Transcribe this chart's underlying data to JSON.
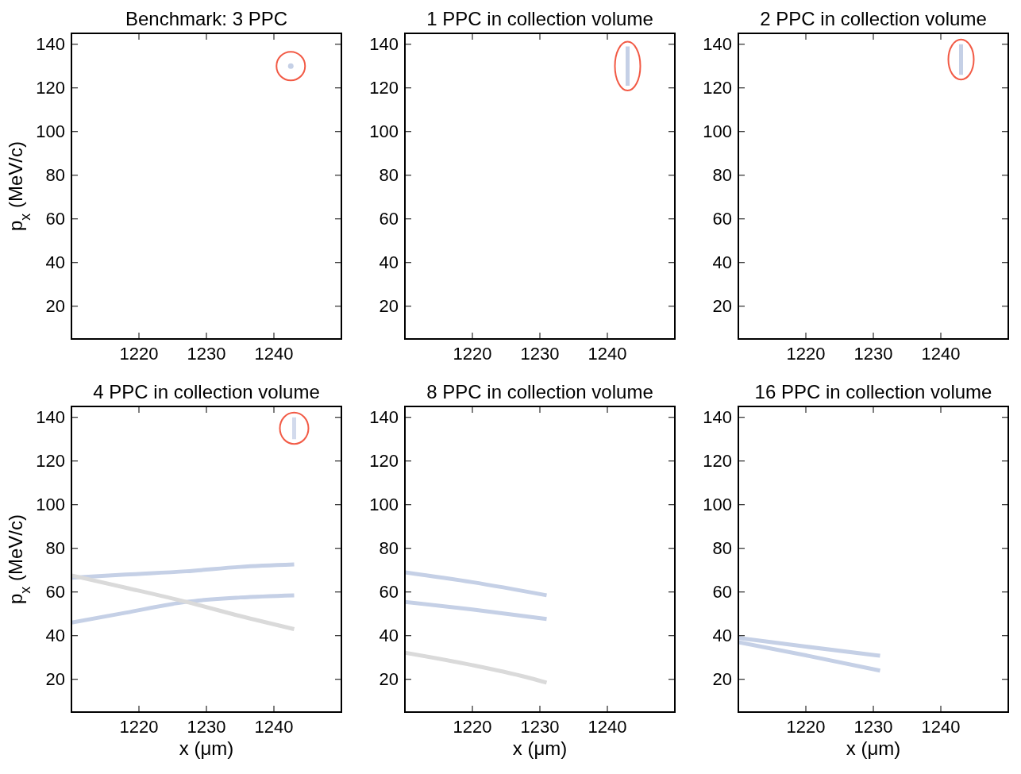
{
  "chart_data": [
    {
      "type": "line",
      "title": "Benchmark: 3 PPC",
      "ylabel": "p$_{x}$ (MeV/c)",
      "xlim": [
        1210,
        1250
      ],
      "ylim": [
        5,
        145
      ],
      "xticks": [
        1220,
        1230,
        1240
      ],
      "yticks": [
        20,
        40,
        60,
        80,
        100,
        120,
        140
      ],
      "series": [
        {
          "type": "scatter",
          "color": "#c5d0e6",
          "x": [
            1242.5
          ],
          "values": [
            130
          ]
        }
      ]
    },
    {
      "type": "line",
      "title": "1 PPC in collection volume",
      "xlim": [
        1210,
        1250
      ],
      "ylim": [
        5,
        145
      ],
      "xticks": [
        1220,
        1230,
        1240
      ],
      "yticks": [
        20,
        40,
        60,
        80,
        100,
        120,
        140
      ],
      "series": [
        {
          "color": "#c5d0e6",
          "x": [
            1243,
            1243
          ],
          "values": [
            121,
            139
          ]
        }
      ]
    },
    {
      "type": "line",
      "title": "2 PPC in collection volume",
      "xlim": [
        1210,
        1250
      ],
      "ylim": [
        5,
        145
      ],
      "xticks": [
        1220,
        1230,
        1240
      ],
      "yticks": [
        20,
        40,
        60,
        80,
        100,
        120,
        140
      ],
      "series": [
        {
          "color": "#c5d0e6",
          "x": [
            1243,
            1243
          ],
          "values": [
            126,
            140
          ]
        }
      ]
    },
    {
      "type": "line",
      "title": "4 PPC in collection volume",
      "ylabel": "p$_{x}$ (MeV/c)",
      "xlabel": "x (μm)",
      "xlim": [
        1210,
        1250
      ],
      "ylim": [
        5,
        145
      ],
      "xticks": [
        1220,
        1230,
        1240
      ],
      "yticks": [
        20,
        40,
        60,
        80,
        100,
        120,
        140
      ],
      "series": [
        {
          "color": "#d2daec",
          "x": [
            1243,
            1243
          ],
          "values": [
            130,
            140
          ]
        },
        {
          "color": "#c5d0e6",
          "x": [
            1210,
            1218,
            1227,
            1235,
            1243
          ],
          "values": [
            66.5,
            68,
            69.5,
            71.5,
            72.6
          ]
        },
        {
          "color": "#c5d0e6",
          "x": [
            1210,
            1218,
            1227,
            1235,
            1243
          ],
          "values": [
            46,
            50.5,
            55.5,
            57.5,
            58.5
          ]
        },
        {
          "color": "#dadada",
          "x": [
            1210,
            1218,
            1227,
            1235,
            1243
          ],
          "values": [
            67.6,
            62,
            55.5,
            49,
            43
          ]
        }
      ]
    },
    {
      "type": "line",
      "title": "8 PPC in collection volume",
      "xlabel": "x (μm)",
      "xlim": [
        1210,
        1250
      ],
      "ylim": [
        5,
        145
      ],
      "xticks": [
        1220,
        1230,
        1240
      ],
      "yticks": [
        20,
        40,
        60,
        80,
        100,
        120,
        140
      ],
      "series": [
        {
          "color": "#c5d0e6",
          "x": [
            1210,
            1220,
            1231
          ],
          "values": [
            69,
            64.5,
            58.5
          ]
        },
        {
          "color": "#c5d0e6",
          "x": [
            1210,
            1220,
            1231
          ],
          "values": [
            55.5,
            52,
            47.6
          ]
        },
        {
          "color": "#dadada",
          "x": [
            1210,
            1220,
            1228,
            1231
          ],
          "values": [
            32.2,
            26.5,
            21,
            18.5
          ]
        }
      ]
    },
    {
      "type": "line",
      "title": "16 PPC in collection volume",
      "xlabel": "x (μm)",
      "xlim": [
        1210,
        1250
      ],
      "ylim": [
        5,
        145
      ],
      "xticks": [
        1220,
        1230,
        1240
      ],
      "yticks": [
        20,
        40,
        60,
        80,
        100,
        120,
        140
      ],
      "series": [
        {
          "color": "#c5d0e6",
          "x": [
            1210,
            1220,
            1231
          ],
          "values": [
            39,
            35,
            30.8
          ]
        },
        {
          "color": "#c5d0e6",
          "x": [
            1210,
            1220,
            1231
          ],
          "values": [
            37,
            31,
            24
          ]
        }
      ]
    }
  ]
}
